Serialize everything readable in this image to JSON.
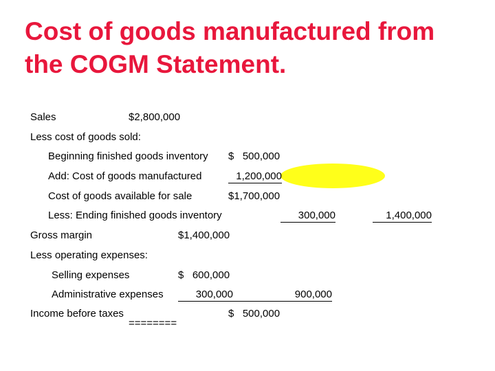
{
  "title_line1": "Cost of goods manufactured from",
  "title_line2": "the COGM Statement.",
  "highlight_color": "#ffff1a",
  "title_color": "#e8173c",
  "statement": {
    "sales_label": "Sales",
    "sales_value": "$2,800,000",
    "less_cogs_label": "Less cost of goods sold:",
    "beg_fg_label": "Beginning finished goods inventory",
    "beg_fg_value": "$   500,000",
    "add_cogm_label": "Add: Cost of goods manufactured",
    "add_cogm_value": "1,200,000",
    "cgas_label": "Cost of goods available for sale",
    "cgas_value": "$1,700,000",
    "end_fg_label": "Less: Ending finished goods inventory",
    "end_fg_value": "300,000",
    "cogs_value": "1,400,000",
    "gross_margin_label": "Gross margin",
    "gross_margin_value": "$1,400,000",
    "less_opex_label": "Less operating expenses:",
    "selling_label": "Selling expenses",
    "selling_value": "$   600,000",
    "admin_label": "Administrative expenses",
    "admin_value": "300,000",
    "opex_total_value": "900,000",
    "income_label": "Income before taxes",
    "income_value": "$   500,000",
    "double_rule": "========"
  }
}
